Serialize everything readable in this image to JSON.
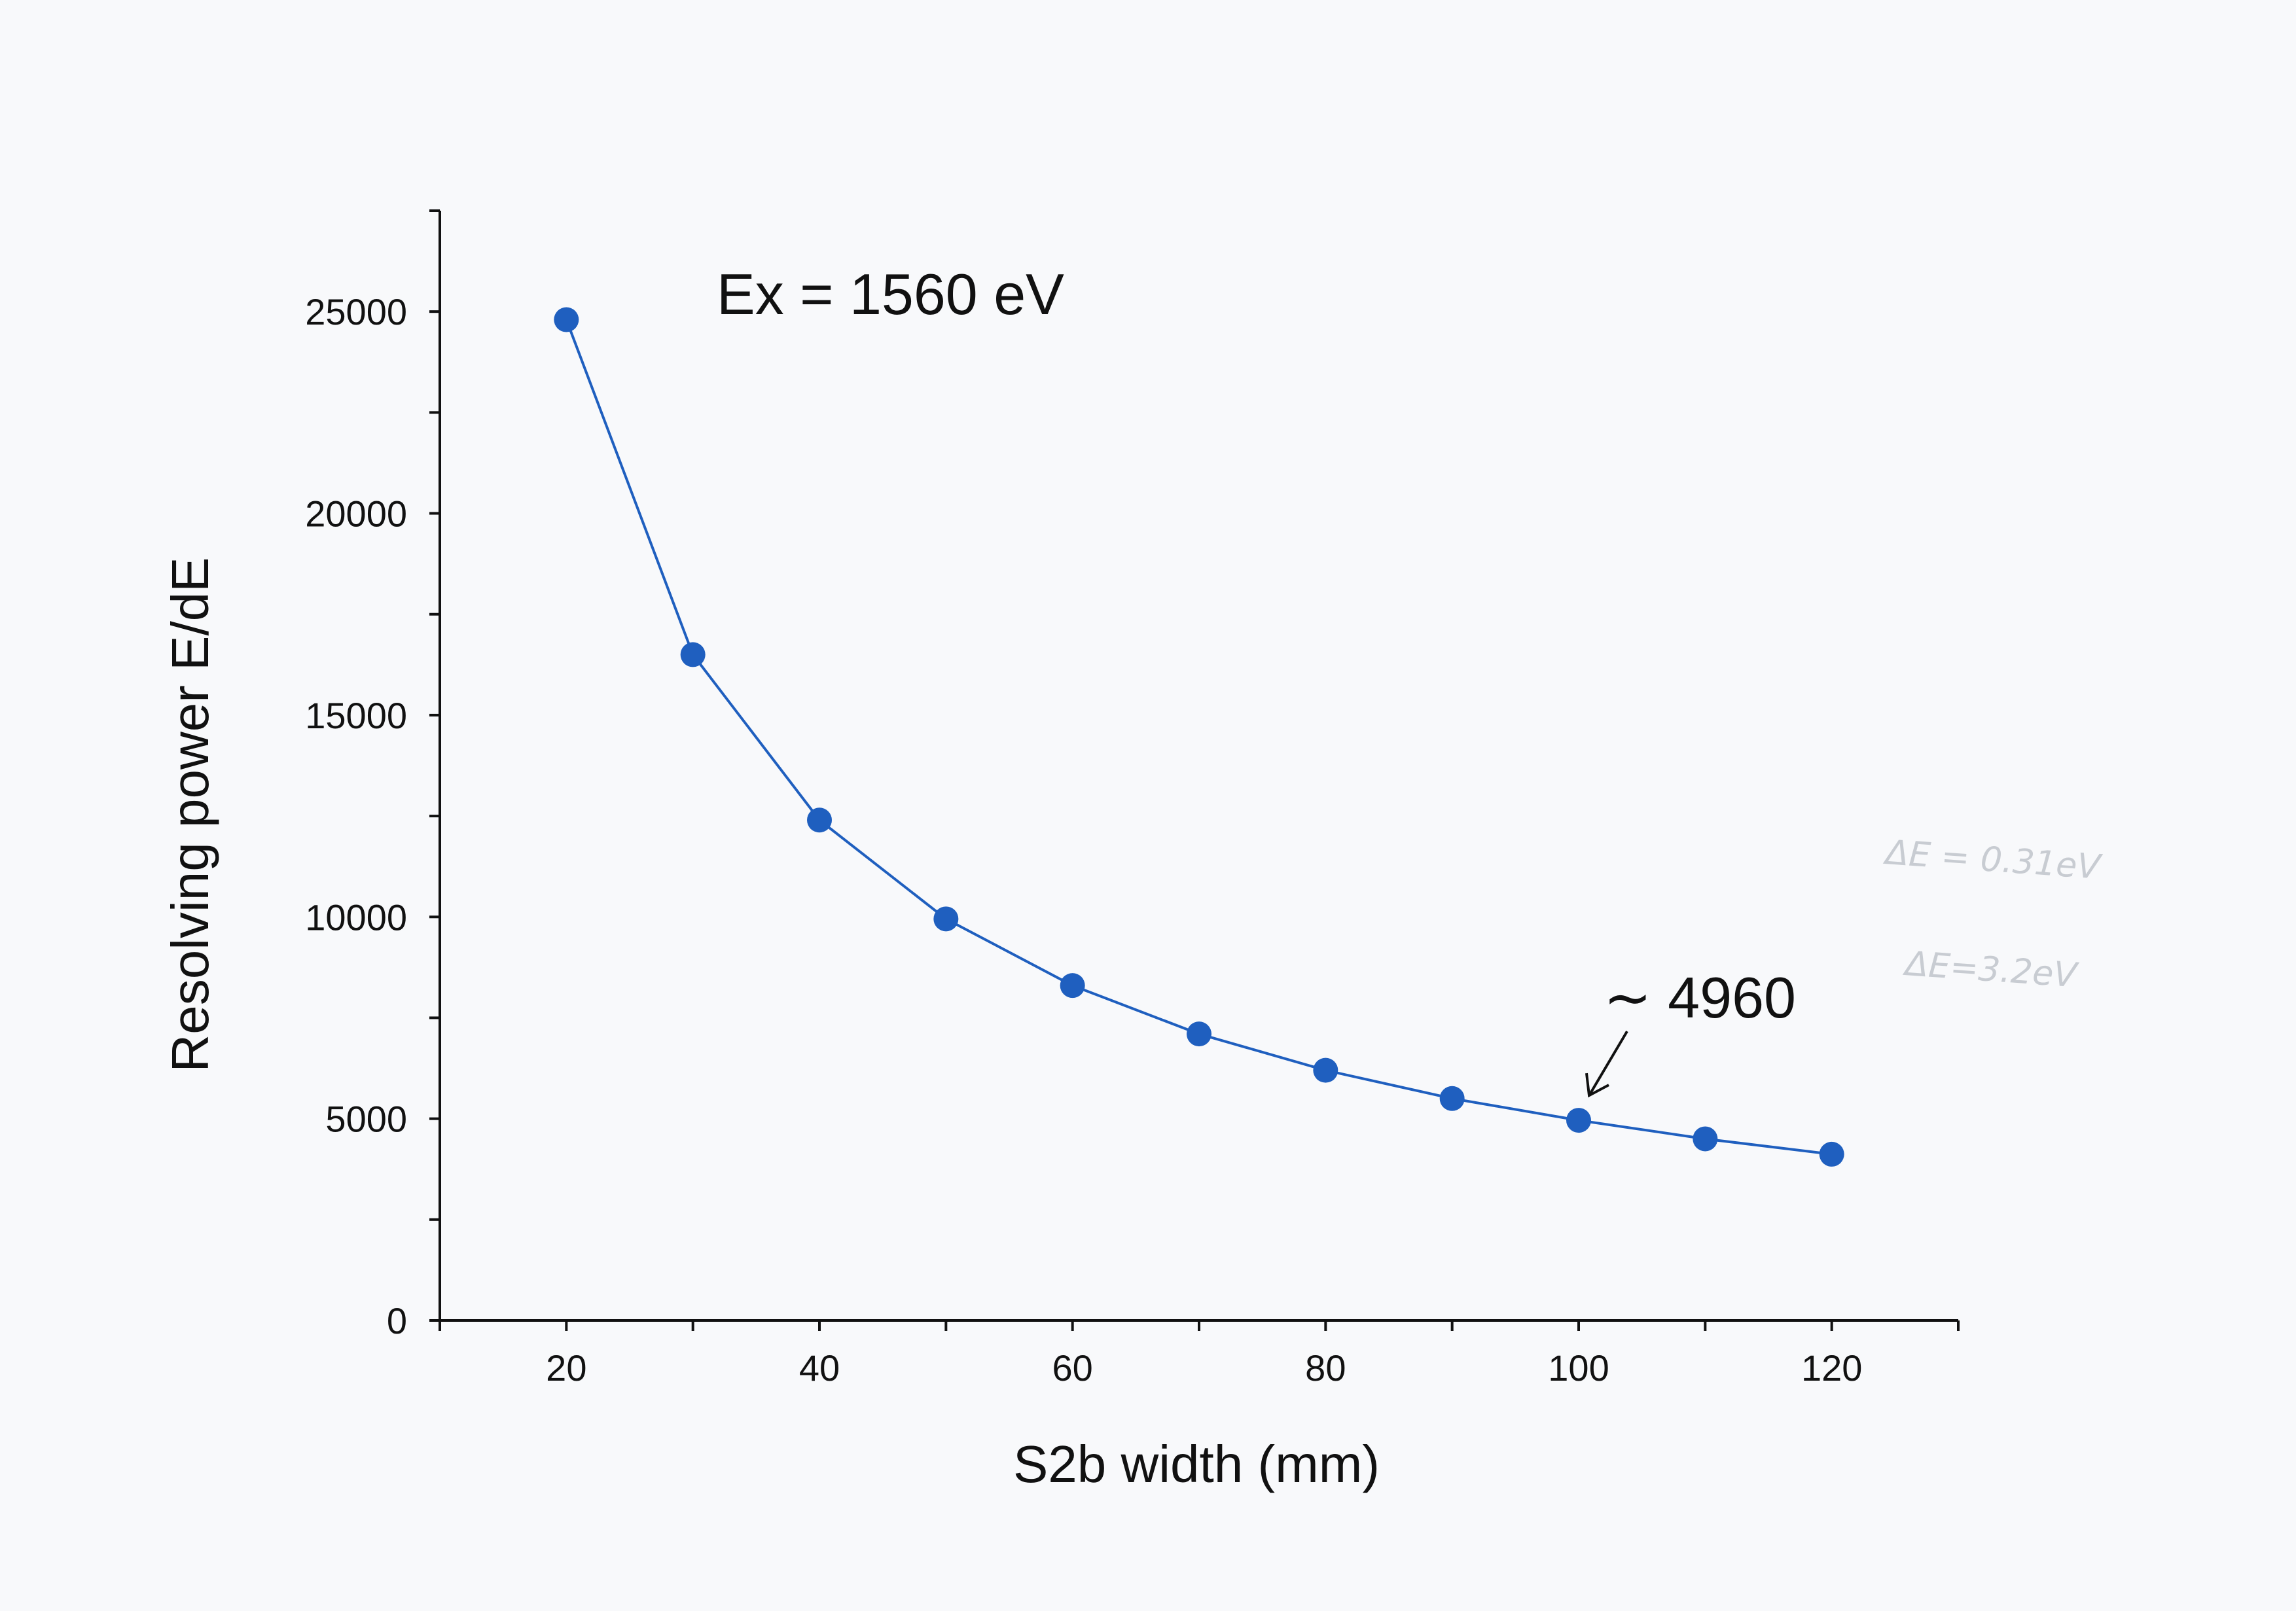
{
  "chart_data": {
    "type": "line",
    "xlabel": "S2b width (mm)",
    "ylabel": "Resolving power E/dE",
    "xlim": [
      10,
      130
    ],
    "ylim": [
      0,
      27500
    ],
    "x_ticks": [
      20,
      40,
      60,
      80,
      100,
      120
    ],
    "x_tick_labels": [
      "20",
      "40",
      "60",
      "80",
      "100",
      "120"
    ],
    "y_ticks": [
      0,
      5000,
      10000,
      15000,
      20000,
      25000
    ],
    "y_tick_labels": [
      "0",
      "5000",
      "10000",
      "15000",
      "20000",
      "25000"
    ],
    "grid": false,
    "series": [
      {
        "x": [
          20,
          30,
          40,
          50,
          60,
          70,
          80,
          90,
          100,
          110,
          120
        ],
        "y": [
          24800,
          16500,
          12400,
          9950,
          8300,
          7100,
          6200,
          5500,
          4960,
          4500,
          4120
        ],
        "color": "#1f5fbf",
        "marker": "circle"
      }
    ],
    "annotations": {
      "condition": "Ex = 1560 eV",
      "callout": "∼ 4960",
      "callout_point": {
        "x": 100,
        "y": 4960
      },
      "handwritten": [
        "ΔE = 0.31eV",
        "ΔE=3.2eV"
      ]
    }
  }
}
